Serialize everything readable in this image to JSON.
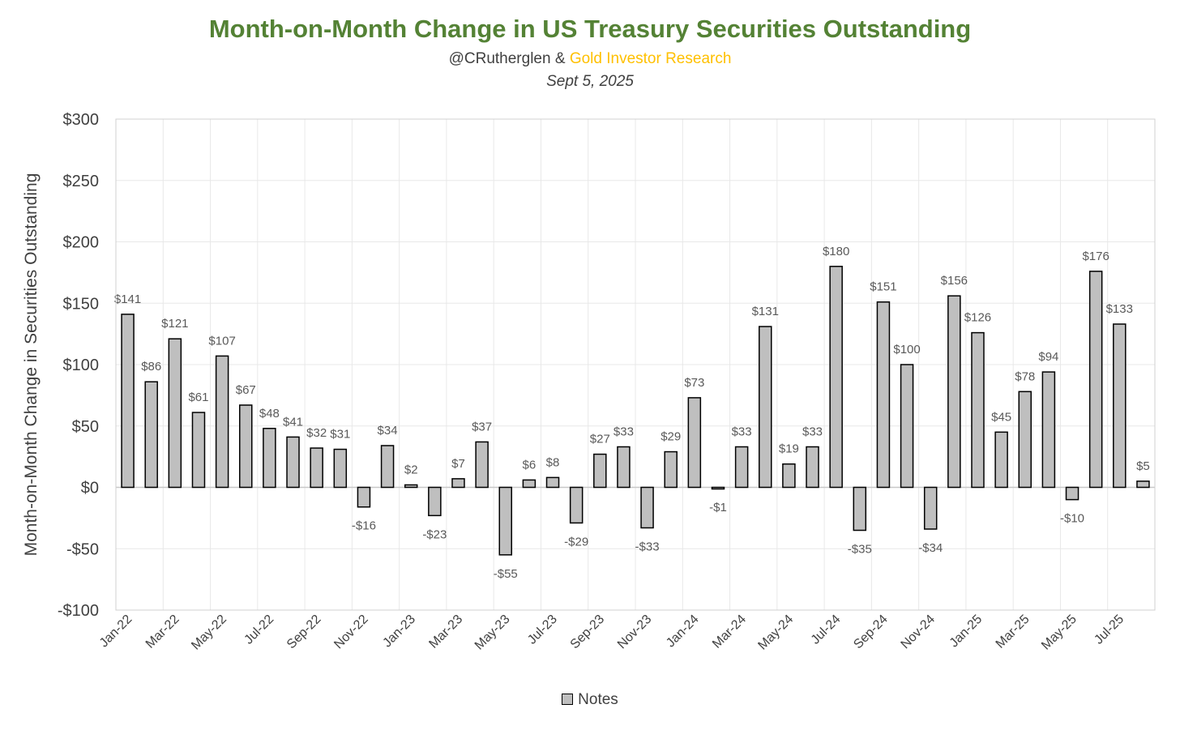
{
  "header": {
    "title": "Month-on-Month Change in US Treasury Securities Outstanding",
    "author": "@CRutherglen",
    "ampersand": "&",
    "brand": "Gold Investor Research",
    "date": "Sept 5, 2025"
  },
  "colors": {
    "title": "#548235",
    "brand": "#ffc000",
    "bar_fill": "#bfbfbf",
    "bar_stroke": "#000000",
    "text": "#404040",
    "grid": "#e8e8e8"
  },
  "chart_data": {
    "type": "bar",
    "title": "Month-on-Month Change in US Treasury Securities Outstanding",
    "xlabel": "",
    "ylabel": "Month-on-Month Change in Securities Outstanding",
    "ylim": [
      -100,
      300
    ],
    "yticks": [
      -100,
      -50,
      0,
      50,
      100,
      150,
      200,
      250,
      300
    ],
    "ytick_labels": [
      "-$100",
      "-$50",
      "$0",
      "$50",
      "$100",
      "$150",
      "$200",
      "$250",
      "$300"
    ],
    "grid": true,
    "legend_position": "bottom",
    "categories": [
      "Jan-22",
      "Feb-22",
      "Mar-22",
      "Apr-22",
      "May-22",
      "Jun-22",
      "Jul-22",
      "Aug-22",
      "Sep-22",
      "Oct-22",
      "Nov-22",
      "Dec-22",
      "Jan-23",
      "Feb-23",
      "Mar-23",
      "Apr-23",
      "May-23",
      "Jun-23",
      "Jul-23",
      "Aug-23",
      "Sep-23",
      "Oct-23",
      "Nov-23",
      "Dec-23",
      "Jan-24",
      "Feb-24",
      "Mar-24",
      "Apr-24",
      "May-24",
      "Jun-24",
      "Jul-24",
      "Aug-24",
      "Sep-24",
      "Oct-24",
      "Nov-24",
      "Dec-24",
      "Jan-25",
      "Feb-25",
      "Mar-25",
      "Apr-25",
      "May-25",
      "Jun-25",
      "Jul-25",
      "Aug-25"
    ],
    "shown_tick_labels": [
      "Jan-22",
      "Mar-22",
      "May-22",
      "Jul-22",
      "Sep-22",
      "Nov-22",
      "Jan-23",
      "Mar-23",
      "May-23",
      "Jul-23",
      "Sep-23",
      "Nov-23",
      "Jan-24",
      "Mar-24",
      "May-24",
      "Jul-24",
      "Sep-24",
      "Nov-24",
      "Jan-25",
      "Mar-25",
      "May-25",
      "Jul-25"
    ],
    "series": [
      {
        "name": "Notes",
        "values": [
          141,
          86,
          121,
          61,
          107,
          67,
          48,
          41,
          32,
          31,
          -16,
          34,
          2,
          -23,
          7,
          37,
          -55,
          6,
          8,
          -29,
          27,
          33,
          -33,
          29,
          73,
          -1,
          33,
          131,
          19,
          33,
          180,
          -35,
          151,
          100,
          -34,
          156,
          126,
          45,
          78,
          94,
          -10,
          176,
          133,
          5
        ],
        "labels": [
          "$141",
          "$86",
          "$121",
          "$61",
          "$107",
          "$67",
          "$48",
          "$41",
          "$32",
          "$31",
          "-$16",
          "$34",
          "$2",
          "-$23",
          "$7",
          "$37",
          "-$55",
          "$6",
          "$8",
          "-$29",
          "$27",
          "$33",
          "-$33",
          "$29",
          "$73",
          "-$1",
          "$33",
          "$131",
          "$19",
          "$33",
          "$180",
          "-$35",
          "$151",
          "$100",
          "-$34",
          "$156",
          "$126",
          "$45",
          "$78",
          "$94",
          "-$10",
          "$176",
          "$133",
          "$5"
        ]
      }
    ]
  }
}
